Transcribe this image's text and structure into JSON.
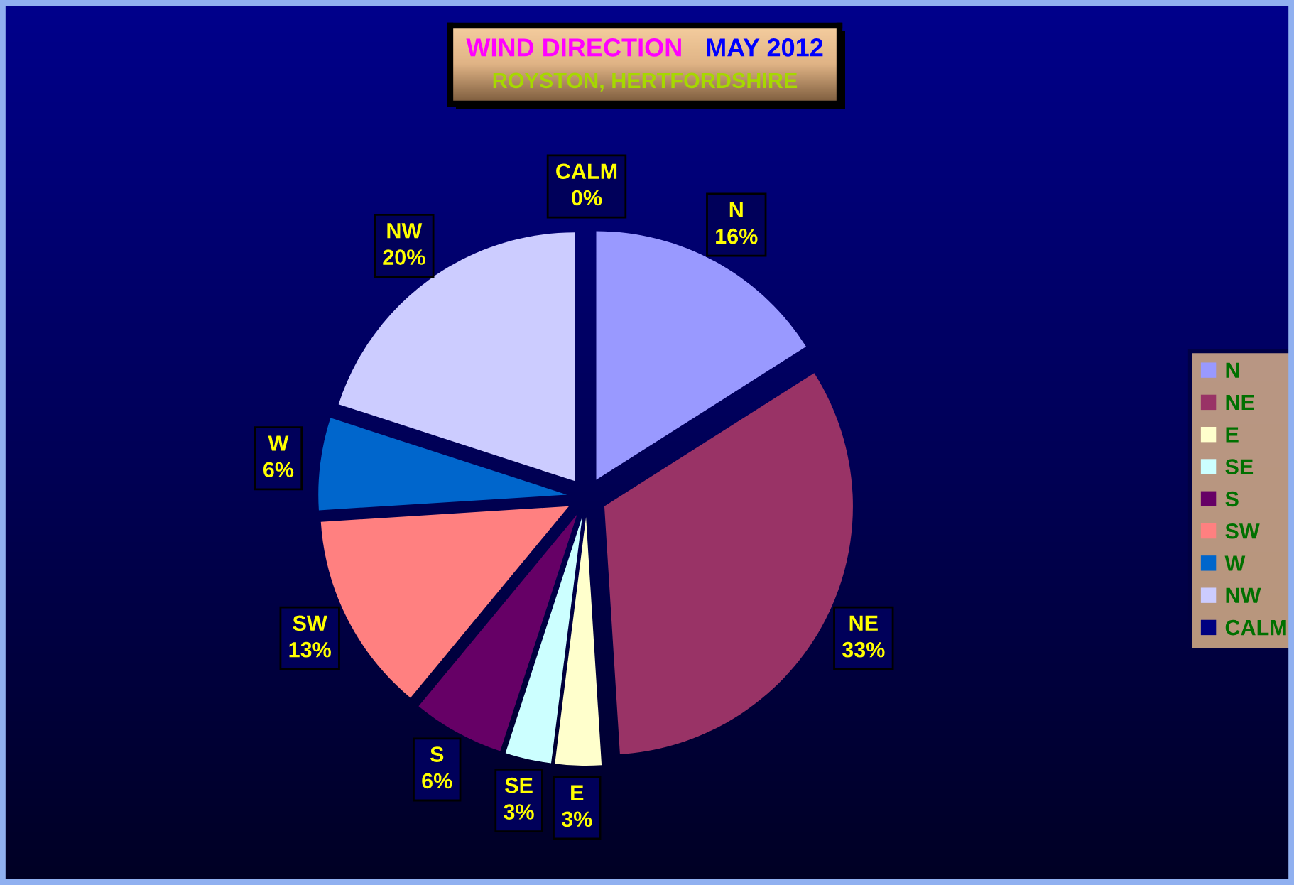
{
  "chart_data": {
    "type": "pie",
    "title": "WIND DIRECTION   MAY 2012",
    "subtitle": "ROYSTON, HERTFORDSHIRE",
    "categories": [
      "N",
      "NE",
      "E",
      "SE",
      "S",
      "SW",
      "W",
      "NW",
      "CALM"
    ],
    "values": [
      16,
      33,
      3,
      3,
      6,
      13,
      6,
      20,
      0
    ],
    "value_labels": [
      "16%",
      "33%",
      "3%",
      "3%",
      "6%",
      "13%",
      "6%",
      "20%",
      "0%"
    ],
    "colors": [
      "#9999ff",
      "#993366",
      "#ffffcc",
      "#ccffff",
      "#660066",
      "#ff8080",
      "#0066cc",
      "#ccccff",
      "#000080"
    ],
    "legend": "right"
  }
}
